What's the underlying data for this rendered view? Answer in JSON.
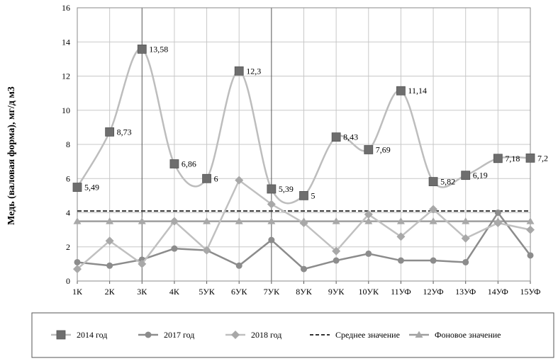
{
  "chart_data": {
    "type": "line",
    "ylabel": "Медь (валовая форма), мг/д м3",
    "ylim": [
      0,
      16
    ],
    "yticks": [
      "0",
      "2",
      "4",
      "6",
      "8",
      "10",
      "12",
      "14",
      "16"
    ],
    "grid": true,
    "legend_position": "bottom",
    "categories": [
      "1К",
      "2К",
      "3К",
      "4К",
      "5УК",
      "6УК",
      "7УК",
      "8УК",
      "9УК",
      "10УК",
      "11УФ",
      "12УФ",
      "13УФ",
      "14УФ",
      "15УФ"
    ],
    "series": [
      {
        "name": "2014 год",
        "marker": "square",
        "color": "#bdbdbd",
        "marker_color": "#6e6e6e",
        "smooth": true,
        "values": [
          5.49,
          8.73,
          13.58,
          6.86,
          6,
          12.3,
          5.39,
          5,
          8.43,
          7.69,
          11.14,
          5.82,
          6.19,
          7.18,
          7.2
        ],
        "data_labels": [
          "5,49",
          "8,73",
          "13,58",
          "6,86",
          "6",
          "12,3",
          "5,39",
          "5",
          "8,43",
          "7,69",
          "11,14",
          "5,82",
          "6,19",
          "7,18",
          "7,2"
        ]
      },
      {
        "name": "2017 год",
        "marker": "circle",
        "color": "#8c8c8c",
        "marker_color": "#8c8c8c",
        "smooth": false,
        "values": [
          1.1,
          0.9,
          1.25,
          1.9,
          1.8,
          0.9,
          2.4,
          0.7,
          1.2,
          1.6,
          1.2,
          1.2,
          1.1,
          4.0,
          1.5
        ]
      },
      {
        "name": "2018 год",
        "marker": "diamond",
        "color": "#c0c0c0",
        "marker_color": "#a8a8a8",
        "smooth": false,
        "values": [
          0.7,
          2.35,
          1.0,
          3.5,
          1.8,
          5.9,
          4.5,
          3.4,
          1.75,
          3.9,
          2.6,
          4.2,
          2.5,
          3.4,
          3.0
        ]
      },
      {
        "name": "Среднее значение",
        "style": "dashed",
        "color": "#333333",
        "values": [
          4.1,
          4.1,
          4.1,
          4.1,
          4.1,
          4.1,
          4.1,
          4.1,
          4.1,
          4.1,
          4.1,
          4.1,
          4.1,
          4.1,
          4.1
        ]
      },
      {
        "name": "Фоновое значение",
        "marker": "triangle",
        "color": "#9e9e9e",
        "marker_color": "#a8a8a8",
        "smooth": false,
        "values": [
          3.5,
          3.5,
          3.5,
          3.5,
          3.5,
          3.5,
          3.5,
          3.5,
          3.5,
          3.5,
          3.5,
          3.5,
          3.5,
          3.5,
          3.5
        ]
      }
    ]
  }
}
